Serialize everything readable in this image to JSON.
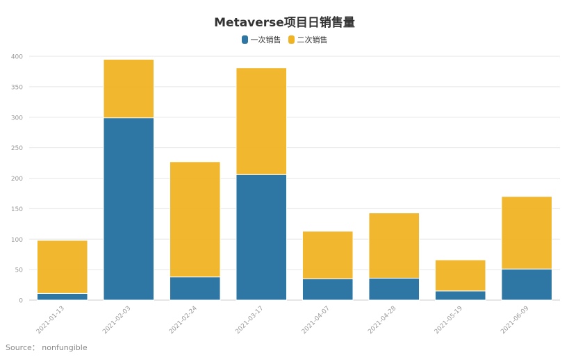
{
  "chart_data": {
    "type": "bar",
    "stacked": true,
    "title": "Metaverse项目日销售量",
    "xlabel": "",
    "ylabel": "",
    "ylim": [
      0,
      400
    ],
    "yticks": [
      0,
      50,
      100,
      150,
      200,
      250,
      300,
      350,
      400
    ],
    "grid": true,
    "legend_position": "top-center",
    "categories": [
      "2021-01-13",
      "2021-02-03",
      "2021-02-24",
      "2021-03-17",
      "2021-04-07",
      "2021-04-28",
      "2021-05-19",
      "2021-06-09"
    ],
    "series": [
      {
        "name": "一次销售",
        "color": "#2e77a4",
        "values": [
          11,
          299,
          38,
          206,
          35,
          36,
          15,
          51
        ]
      },
      {
        "name": "二次销售",
        "color": "#f0b323",
        "values": [
          87,
          96,
          189,
          175,
          78,
          107,
          51,
          119
        ]
      }
    ]
  },
  "source": "Source：  nonfungible"
}
